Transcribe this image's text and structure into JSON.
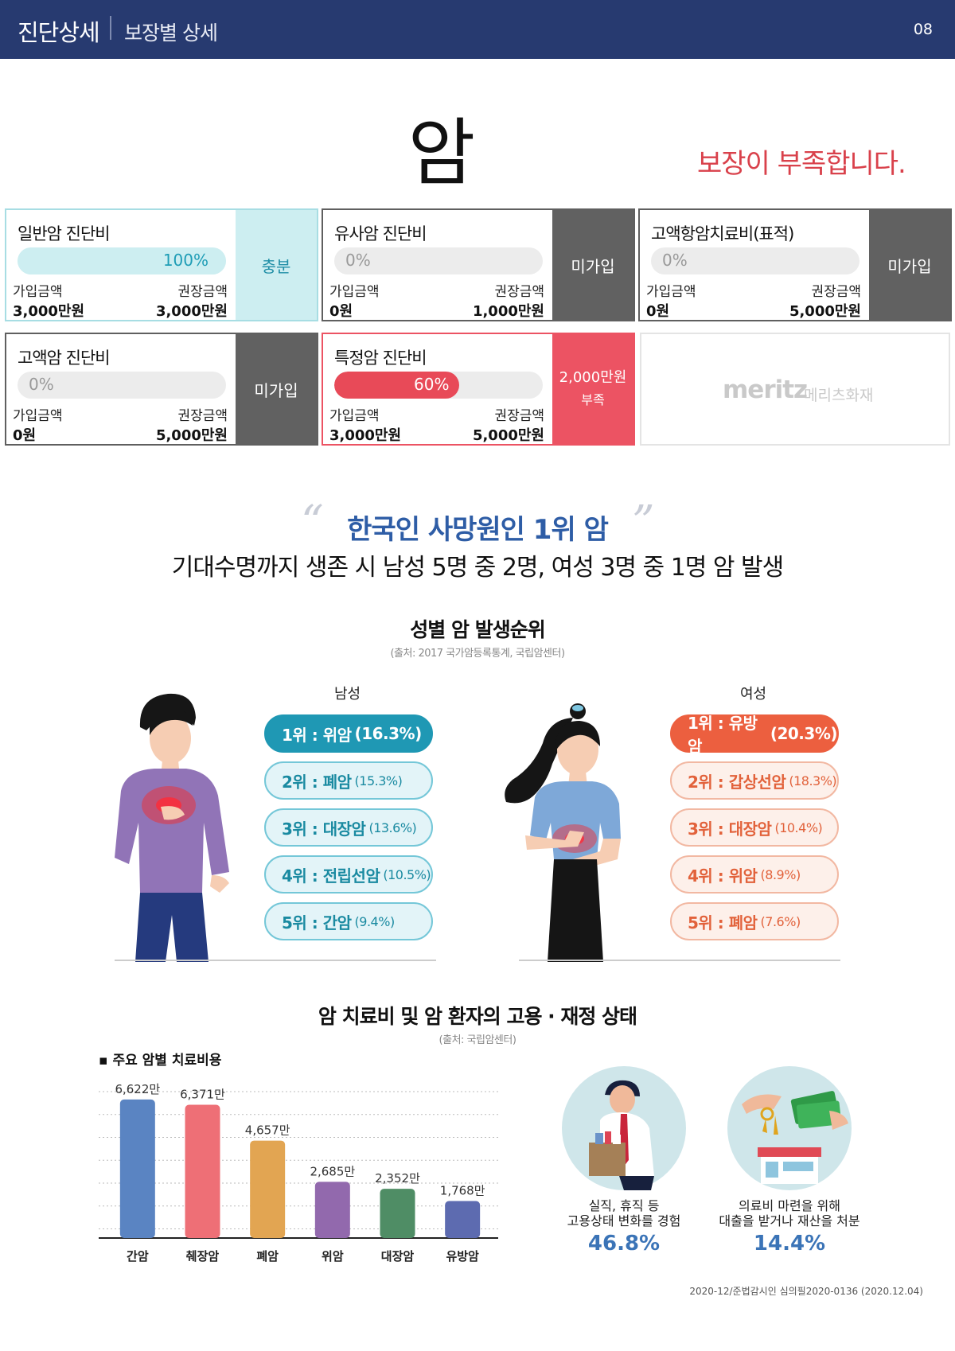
{
  "header": {
    "section": "진단상세",
    "subsection": "보장별 상세",
    "page": "08"
  },
  "main": {
    "title": "암",
    "warning": "보장이 부족합니다."
  },
  "labels": {
    "join_amount": "가입금액",
    "recommend_amount": "권장금액"
  },
  "cards": [
    {
      "name": "일반암 진단비",
      "percent": "100%",
      "joined": "3,000만원",
      "recommended": "3,000만원",
      "status": "충분"
    },
    {
      "name": "유사암 진단비",
      "percent": "0%",
      "joined": "0원",
      "recommended": "1,000만원",
      "status": "미가입"
    },
    {
      "name": "고액항암치료비(표적)",
      "percent": "0%",
      "joined": "0원",
      "recommended": "5,000만원",
      "status": "미가입"
    },
    {
      "name": "고액암 진단비",
      "percent": "0%",
      "joined": "0원",
      "recommended": "5,000만원",
      "status": "미가입"
    },
    {
      "name": "특정암 진단비",
      "percent": "60%",
      "joined": "3,000만원",
      "recommended": "5,000만원",
      "status_amount": "2,000만원",
      "status": "부족"
    }
  ],
  "logo": {
    "brand": "meritz",
    "brand_kr": "메리츠화재"
  },
  "quote": {
    "open": "“",
    "close": "”",
    "title": "한국인 사망원인 1위 암",
    "subtitle": "기대수명까지 생존 시 남성 5명 중 2명, 여성 3명 중 1명 암 발생"
  },
  "ranking": {
    "title": "성별 암 발생순위",
    "source": "(출처: 2017 국가암등록통계, 국립암센터)",
    "male_label": "남성",
    "female_label": "여성",
    "male": [
      {
        "rank": "1위 : 위암",
        "pct": "(16.3%)"
      },
      {
        "rank": "2위 : 폐암",
        "pct": "(15.3%)"
      },
      {
        "rank": "3위 : 대장암",
        "pct": "(13.6%)"
      },
      {
        "rank": "4위 : 전립선암",
        "pct": "(10.5%)"
      },
      {
        "rank": "5위 : 간암",
        "pct": "(9.4%)"
      }
    ],
    "female": [
      {
        "rank": "1위 : 유방암",
        "pct": "(20.3%)"
      },
      {
        "rank": "2위 : 갑상선암",
        "pct": "(18.3%)"
      },
      {
        "rank": "3위 : 대장암",
        "pct": "(10.4%)"
      },
      {
        "rank": "4위 : 위암",
        "pct": "(8.9%)"
      },
      {
        "rank": "5위 : 폐암",
        "pct": "(7.6%)"
      }
    ]
  },
  "treatment": {
    "title": "암 치료비 및 암 환자의 고용 · 재정 상태",
    "source": "(출처: 국립암센터)",
    "chart_label": "▪ 주요 암별 치료비용"
  },
  "chart_data": {
    "type": "bar",
    "categories": [
      "간암",
      "췌장암",
      "폐암",
      "위암",
      "대장암",
      "유방암"
    ],
    "values": [
      6622,
      6371,
      4657,
      2685,
      2352,
      1768
    ],
    "value_labels": [
      "6,622만",
      "6,371만",
      "4,657만",
      "2,685만",
      "2,352만",
      "1,768만"
    ],
    "colors": [
      "#5a84c2",
      "#ee6f76",
      "#e2a552",
      "#9269ad",
      "#4f8d65",
      "#5d6bb0"
    ],
    "grid": true,
    "title": "주요 암별 치료비용"
  },
  "stats": [
    {
      "line1": "실직, 휴직 등",
      "line2": "고용상태 변화를 경험",
      "value": "46.8%"
    },
    {
      "line1": "의료비 마련을 위해",
      "line2": "대출을 받거나 재산을 처분",
      "value": "14.4%"
    }
  ],
  "footer": "2020-12/준법감시인 심의필2020-0136 (2020.12.04)"
}
